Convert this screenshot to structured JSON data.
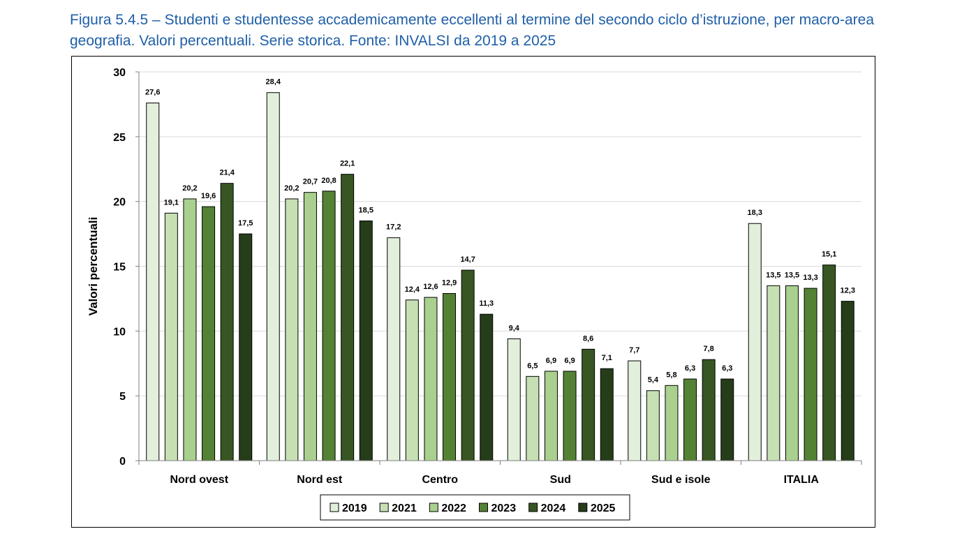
{
  "caption": "Figura 5.4.5 – Studenti e studentesse accademicamente eccellenti al termine del secondo ciclo d’istruzione, per macro-area geografia. Valori percentuali. Serie storica. Fonte: INVALSI da 2019 a 2025",
  "chart_data": {
    "type": "bar",
    "title": "Figura 5.4.5 – Studenti e studentesse accademicamente eccellenti al termine del secondo ciclo d’istruzione, per macro-area geografia. Valori percentuali. Serie storica. Fonte: INVALSI da 2019 a 2025",
    "xlabel": "",
    "ylabel": "Valori percentuali",
    "ylim": [
      0,
      30
    ],
    "yticks": [
      0,
      5,
      10,
      15,
      20,
      25,
      30
    ],
    "grid": true,
    "legend_position": "bottom",
    "categories": [
      "Nord ovest",
      "Nord est",
      "Centro",
      "Sud",
      "Sud e isole",
      "ITALIA"
    ],
    "series": [
      {
        "name": "2019",
        "color": "#e2efda",
        "values": [
          27.6,
          28.4,
          17.2,
          9.4,
          7.7,
          18.3
        ]
      },
      {
        "name": "2021",
        "color": "#c6e0b4",
        "values": [
          19.1,
          20.2,
          12.4,
          6.5,
          5.4,
          13.5
        ]
      },
      {
        "name": "2022",
        "color": "#a9d08e",
        "values": [
          20.2,
          20.7,
          12.6,
          6.9,
          5.8,
          13.5
        ]
      },
      {
        "name": "2023",
        "color": "#548235",
        "values": [
          19.6,
          20.8,
          12.9,
          6.9,
          6.3,
          13.3
        ]
      },
      {
        "name": "2024",
        "color": "#375623",
        "values": [
          21.4,
          22.1,
          14.7,
          8.6,
          7.8,
          15.1
        ]
      },
      {
        "name": "2025",
        "color": "#263d19",
        "values": [
          17.5,
          18.5,
          11.3,
          7.1,
          6.3,
          12.3
        ]
      }
    ]
  }
}
